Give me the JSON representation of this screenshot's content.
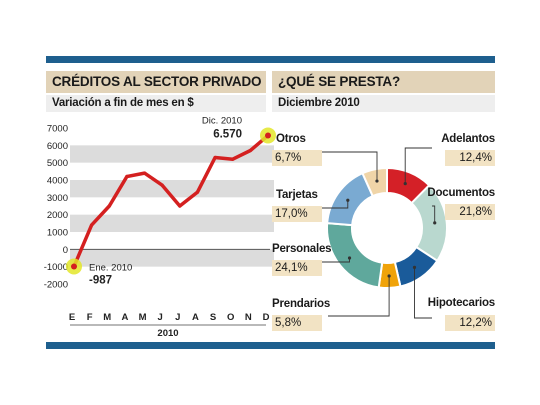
{
  "left_panel": {
    "title": "CRÉDITOS AL SECTOR PRIVADO",
    "subtitle": "Variación a fin de mes en $"
  },
  "right_panel": {
    "title": "¿QUÉ SE PRESTA?",
    "subtitle": "Diciembre 2010"
  },
  "colors": {
    "header_band": "#e2d3b8",
    "frame_blue": "#1e5f8e",
    "line": "#d42020",
    "highlight": "#e3e629"
  },
  "chart_data": [
    {
      "type": "line",
      "x": [
        "E",
        "F",
        "M",
        "A",
        "M",
        "J",
        "J",
        "A",
        "S",
        "O",
        "N",
        "D"
      ],
      "xlabel": "2010",
      "values": [
        -987,
        1400,
        2500,
        4200,
        4400,
        3700,
        2500,
        3300,
        5300,
        5200,
        5700,
        6570
      ],
      "ylim": [
        -2000,
        7000
      ],
      "yticks": [
        7000,
        6000,
        5000,
        4000,
        3000,
        2000,
        1000,
        0,
        -1000,
        -2000
      ],
      "grid": "horizontal alternating bands",
      "annotations": [
        {
          "label": "Ene. 2010",
          "value": "-987"
        },
        {
          "label": "Dic. 2010",
          "value": "6.570"
        }
      ]
    },
    {
      "type": "pie",
      "subtype": "donut",
      "slices": [
        {
          "label": "Adelantos",
          "value": 12.4,
          "display": "12,4%",
          "color": "#d42027"
        },
        {
          "label": "Documentos",
          "value": 21.8,
          "display": "21,8%",
          "color": "#b9d8cf"
        },
        {
          "label": "Hipotecarios",
          "value": 12.2,
          "display": "12,2%",
          "color": "#1a5b9a"
        },
        {
          "label": "Prendarios",
          "value": 5.8,
          "display": "5,8%",
          "color": "#f0a30a"
        },
        {
          "label": "Personales",
          "value": 24.1,
          "display": "24,1%",
          "color": "#5fa89c"
        },
        {
          "label": "Tarjetas",
          "value": 17.0,
          "display": "17,0%",
          "color": "#7aaad2"
        },
        {
          "label": "Otros",
          "value": 6.7,
          "display": "6,7%",
          "color": "#f0d5a8"
        }
      ]
    }
  ]
}
